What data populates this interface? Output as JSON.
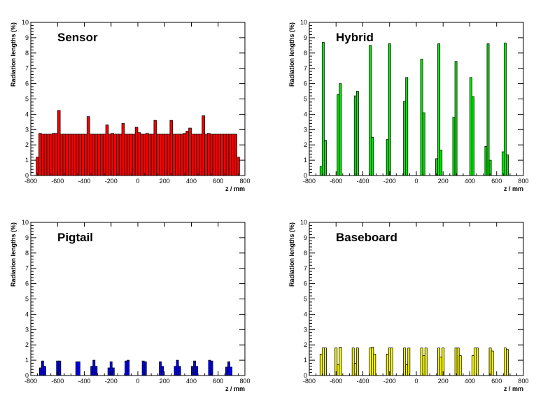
{
  "chart_data": [
    {
      "type": "bar",
      "title": "Sensor",
      "xlabel": "z / mm",
      "ylabel": "Radiation lengths (%)",
      "xlim": [
        -800,
        800
      ],
      "ylim": [
        0,
        10
      ],
      "xticks": [
        "-800",
        "-600",
        "-400",
        "-200",
        "0",
        "200",
        "400",
        "600",
        "800"
      ],
      "yticks": [
        "0",
        "1",
        "2",
        "3",
        "4",
        "5",
        "6",
        "7",
        "8",
        "9",
        "10"
      ],
      "color": "#ff0000",
      "bin_width": 20,
      "bins": [
        [
          -760,
          1.2
        ],
        [
          -740,
          2.75
        ],
        [
          -720,
          2.7
        ],
        [
          -700,
          2.7
        ],
        [
          -680,
          2.7
        ],
        [
          -660,
          2.7
        ],
        [
          -640,
          2.75
        ],
        [
          -620,
          2.75
        ],
        [
          -600,
          4.25
        ],
        [
          -580,
          2.7
        ],
        [
          -560,
          2.7
        ],
        [
          -540,
          2.7
        ],
        [
          -520,
          2.7
        ],
        [
          -500,
          2.7
        ],
        [
          -480,
          2.7
        ],
        [
          -460,
          2.7
        ],
        [
          -440,
          2.7
        ],
        [
          -420,
          2.7
        ],
        [
          -400,
          2.7
        ],
        [
          -380,
          3.85
        ],
        [
          -360,
          2.7
        ],
        [
          -340,
          2.7
        ],
        [
          -320,
          2.7
        ],
        [
          -300,
          2.7
        ],
        [
          -280,
          2.7
        ],
        [
          -260,
          2.7
        ],
        [
          -240,
          3.3
        ],
        [
          -220,
          2.7
        ],
        [
          -200,
          2.75
        ],
        [
          -180,
          2.7
        ],
        [
          -160,
          2.7
        ],
        [
          -140,
          2.7
        ],
        [
          -120,
          3.4
        ],
        [
          -100,
          2.7
        ],
        [
          -80,
          2.7
        ],
        [
          -60,
          2.7
        ],
        [
          -40,
          2.7
        ],
        [
          -20,
          3.15
        ],
        [
          0,
          2.8
        ],
        [
          20,
          2.7
        ],
        [
          40,
          2.7
        ],
        [
          60,
          2.75
        ],
        [
          80,
          2.7
        ],
        [
          100,
          2.7
        ],
        [
          120,
          3.6
        ],
        [
          140,
          2.7
        ],
        [
          160,
          2.7
        ],
        [
          180,
          2.7
        ],
        [
          200,
          2.7
        ],
        [
          220,
          2.7
        ],
        [
          240,
          3.6
        ],
        [
          260,
          2.7
        ],
        [
          280,
          2.7
        ],
        [
          300,
          2.7
        ],
        [
          320,
          2.7
        ],
        [
          340,
          2.75
        ],
        [
          360,
          2.9
        ],
        [
          380,
          3.1
        ],
        [
          400,
          2.7
        ],
        [
          420,
          2.7
        ],
        [
          440,
          2.7
        ],
        [
          460,
          2.7
        ],
        [
          480,
          3.9
        ],
        [
          500,
          2.7
        ],
        [
          520,
          2.75
        ],
        [
          540,
          2.7
        ],
        [
          560,
          2.7
        ],
        [
          580,
          2.7
        ],
        [
          600,
          2.7
        ],
        [
          620,
          2.7
        ],
        [
          640,
          2.7
        ],
        [
          660,
          2.7
        ],
        [
          680,
          2.7
        ],
        [
          700,
          2.7
        ],
        [
          720,
          2.7
        ],
        [
          740,
          1.2
        ]
      ]
    },
    {
      "type": "bar",
      "title": "Hybrid",
      "xlabel": "z / mm",
      "ylabel": "Radiation lengths (%)",
      "xlim": [
        -800,
        800
      ],
      "ylim": [
        0,
        10
      ],
      "xticks": [
        "-800",
        "-600",
        "-400",
        "-200",
        "0",
        "200",
        "400",
        "600",
        "800"
      ],
      "yticks": [
        "0",
        "1",
        "2",
        "3",
        "4",
        "5",
        "6",
        "7",
        "8",
        "9",
        "10"
      ],
      "color": "#00ee00",
      "bin_width": 16,
      "bins": [
        [
          -720,
          0.6
        ],
        [
          -704,
          8.7
        ],
        [
          -688,
          2.3
        ],
        [
          -592,
          5.3
        ],
        [
          -576,
          6.0
        ],
        [
          -464,
          5.2
        ],
        [
          -448,
          5.5
        ],
        [
          -352,
          8.5
        ],
        [
          -336,
          2.5
        ],
        [
          -224,
          2.35
        ],
        [
          -208,
          8.6
        ],
        [
          -96,
          4.85
        ],
        [
          -80,
          6.4
        ],
        [
          32,
          7.6
        ],
        [
          48,
          4.1
        ],
        [
          144,
          1.1
        ],
        [
          160,
          8.6
        ],
        [
          176,
          1.65
        ],
        [
          272,
          3.8
        ],
        [
          288,
          7.45
        ],
        [
          400,
          6.4
        ],
        [
          416,
          5.15
        ],
        [
          512,
          1.9
        ],
        [
          528,
          8.6
        ],
        [
          544,
          1.0
        ],
        [
          640,
          1.55
        ],
        [
          656,
          8.65
        ],
        [
          672,
          1.35
        ]
      ]
    },
    {
      "type": "bar",
      "title": "Pigtail",
      "xlabel": "z / mm",
      "ylabel": "Radiation lengths (%)",
      "xlim": [
        -800,
        800
      ],
      "ylim": [
        0,
        10
      ],
      "xticks": [
        "-800",
        "-600",
        "-400",
        "-200",
        "0",
        "200",
        "400",
        "600",
        "800"
      ],
      "yticks": [
        "0",
        "1",
        "2",
        "3",
        "4",
        "5",
        "6",
        "7",
        "8",
        "9",
        "10"
      ],
      "color": "#0000ff",
      "bin_width": 16,
      "bins": [
        [
          -736,
          0.5
        ],
        [
          -720,
          0.95
        ],
        [
          -704,
          0.6
        ],
        [
          -608,
          0.95
        ],
        [
          -592,
          0.95
        ],
        [
          -464,
          0.9
        ],
        [
          -448,
          0.9
        ],
        [
          -352,
          0.6
        ],
        [
          -336,
          1.0
        ],
        [
          -320,
          0.6
        ],
        [
          -224,
          0.5
        ],
        [
          -208,
          0.9
        ],
        [
          -192,
          0.5
        ],
        [
          -96,
          0.95
        ],
        [
          -80,
          1.0
        ],
        [
          32,
          0.95
        ],
        [
          48,
          0.9
        ],
        [
          160,
          0.9
        ],
        [
          176,
          0.6
        ],
        [
          272,
          0.6
        ],
        [
          288,
          1.0
        ],
        [
          304,
          0.6
        ],
        [
          400,
          0.6
        ],
        [
          416,
          0.95
        ],
        [
          432,
          0.6
        ],
        [
          528,
          1.0
        ],
        [
          544,
          0.95
        ],
        [
          656,
          0.55
        ],
        [
          672,
          0.9
        ],
        [
          688,
          0.55
        ]
      ]
    },
    {
      "type": "bar",
      "title": "Baseboard",
      "xlabel": "z / mm",
      "ylabel": "Radiation lengths (%)",
      "xlim": [
        -800,
        800
      ],
      "ylim": [
        0,
        10
      ],
      "xticks": [
        "-800",
        "-600",
        "-400",
        "-200",
        "0",
        "200",
        "400",
        "600",
        "800"
      ],
      "yticks": [
        "0",
        "1",
        "2",
        "3",
        "4",
        "5",
        "6",
        "7",
        "8",
        "9",
        "10"
      ],
      "color": "#ffff00",
      "bin_width": 16,
      "bins": [
        [
          -720,
          1.4
        ],
        [
          -704,
          1.8
        ],
        [
          -688,
          1.8
        ],
        [
          -608,
          1.8
        ],
        [
          -592,
          0.7
        ],
        [
          -576,
          1.85
        ],
        [
          -480,
          1.8
        ],
        [
          -464,
          0.8
        ],
        [
          -448,
          1.8
        ],
        [
          -352,
          1.8
        ],
        [
          -336,
          1.85
        ],
        [
          -320,
          1.4
        ],
        [
          -224,
          1.4
        ],
        [
          -208,
          1.8
        ],
        [
          -192,
          1.8
        ],
        [
          -96,
          1.8
        ],
        [
          -80,
          0.7
        ],
        [
          -64,
          1.8
        ],
        [
          32,
          1.8
        ],
        [
          48,
          1.3
        ],
        [
          64,
          1.8
        ],
        [
          160,
          1.8
        ],
        [
          176,
          1.2
        ],
        [
          192,
          1.8
        ],
        [
          288,
          1.8
        ],
        [
          304,
          1.8
        ],
        [
          320,
          1.3
        ],
        [
          416,
          1.3
        ],
        [
          432,
          1.8
        ],
        [
          448,
          1.8
        ],
        [
          544,
          1.8
        ],
        [
          560,
          1.6
        ],
        [
          656,
          1.8
        ],
        [
          672,
          1.7
        ]
      ]
    }
  ]
}
